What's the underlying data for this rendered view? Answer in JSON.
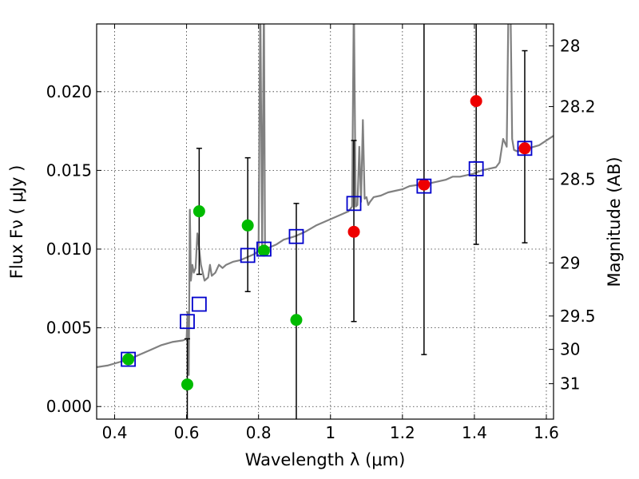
{
  "chart_data": {
    "type": "scatter",
    "xlabel": "Wavelength  λ (μm)",
    "ylabel": "Flux  Fν  ( μJy )",
    "ylabel_right": "Magnitude (AB)",
    "xlim": [
      0.35,
      1.62
    ],
    "ylim": [
      -0.0008,
      0.0243
    ],
    "grid": true,
    "x_ticks": [
      0.4,
      0.6,
      0.8,
      1.0,
      1.2,
      1.4,
      1.6
    ],
    "x_tick_labels": [
      "0.4",
      "0.6",
      "0.8",
      "1",
      "1.2",
      "1.4",
      "1.6"
    ],
    "y_ticks": [
      0.0,
      0.005,
      0.01,
      0.015,
      0.02
    ],
    "y_tick_labels": [
      "0.000",
      "0.005",
      "0.010",
      "0.015",
      "0.020"
    ],
    "right_ticks": [
      {
        "label": "28",
        "flux": 0.02291
      },
      {
        "label": "28.2",
        "flux": 0.01905
      },
      {
        "label": "28.5",
        "flux": 0.01445
      },
      {
        "label": "29",
        "flux": 0.00912
      },
      {
        "label": "29.5",
        "flux": 0.00575
      },
      {
        "label": "30",
        "flux": 0.00363
      },
      {
        "label": "31",
        "flux": 0.00145
      }
    ],
    "colors": {
      "template": "#808080",
      "model_box": "#0000cc",
      "green": "#00bb00",
      "red": "#ee0000",
      "errorbar": "#000000",
      "grid": "#333333"
    },
    "series": [
      {
        "kind": "template_spectrum",
        "x": [
          0.35,
          0.38,
          0.41,
          0.44,
          0.47,
          0.5,
          0.53,
          0.56,
          0.59,
          0.6,
          0.603,
          0.606,
          0.609,
          0.612,
          0.616,
          0.62,
          0.625,
          0.63,
          0.635,
          0.64,
          0.65,
          0.66,
          0.665,
          0.67,
          0.68,
          0.69,
          0.7,
          0.71,
          0.73,
          0.75,
          0.77,
          0.79,
          0.8,
          0.805,
          0.81,
          0.815,
          0.818,
          0.822,
          0.83,
          0.85,
          0.87,
          0.9,
          0.93,
          0.96,
          0.99,
          1.02,
          1.05,
          1.06,
          1.065,
          1.07,
          1.075,
          1.08,
          1.085,
          1.09,
          1.095,
          1.1,
          1.105,
          1.11,
          1.12,
          1.14,
          1.16,
          1.18,
          1.2,
          1.22,
          1.25,
          1.28,
          1.3,
          1.32,
          1.34,
          1.36,
          1.38,
          1.4,
          1.42,
          1.44,
          1.46,
          1.47,
          1.48,
          1.49,
          1.495,
          1.5,
          1.505,
          1.51,
          1.52,
          1.55,
          1.58,
          1.62
        ],
        "y": [
          0.0025,
          0.0026,
          0.0028,
          0.003,
          0.0033,
          0.0036,
          0.0039,
          0.0041,
          0.0042,
          0.0043,
          0.006,
          0.002,
          0.0125,
          0.008,
          0.009,
          0.0085,
          0.0088,
          0.011,
          0.01,
          0.009,
          0.008,
          0.0082,
          0.009,
          0.0083,
          0.0085,
          0.009,
          0.0088,
          0.009,
          0.0092,
          0.0093,
          0.0095,
          0.0097,
          0.0099,
          0.026,
          0.0099,
          0.026,
          0.0098,
          0.01,
          0.0101,
          0.0103,
          0.0106,
          0.0108,
          0.0111,
          0.0115,
          0.0118,
          0.0121,
          0.0124,
          0.0127,
          0.026,
          0.0127,
          0.0128,
          0.0165,
          0.013,
          0.0182,
          0.0132,
          0.0133,
          0.0128,
          0.013,
          0.0133,
          0.0134,
          0.0136,
          0.0137,
          0.0138,
          0.014,
          0.0141,
          0.0142,
          0.0143,
          0.0144,
          0.0146,
          0.0146,
          0.0147,
          0.0148,
          0.015,
          0.0151,
          0.0152,
          0.0155,
          0.017,
          0.0165,
          0.026,
          0.026,
          0.017,
          0.0163,
          0.0162,
          0.0164,
          0.0166,
          0.0172
        ]
      },
      {
        "kind": "model_photometry",
        "x": [
          0.438,
          0.602,
          0.635,
          0.77,
          0.815,
          0.905,
          1.065,
          1.26,
          1.405,
          1.54
        ],
        "y": [
          0.003,
          0.0054,
          0.0065,
          0.0096,
          0.01,
          0.0108,
          0.0129,
          0.014,
          0.0151,
          0.0164
        ]
      },
      {
        "kind": "observed_green",
        "x": [
          0.438,
          0.602,
          0.635,
          0.77,
          0.815,
          0.905
        ],
        "y": [
          0.003,
          0.0014,
          0.0124,
          0.0115,
          0.0099,
          0.0055
        ],
        "err_low": [
          0.0,
          0.005,
          0.004,
          0.0042,
          0.0,
          0.0065
        ],
        "err_high": [
          0.0,
          0.0029,
          0.004,
          0.0043,
          0.0,
          0.0074
        ]
      },
      {
        "kind": "observed_red",
        "x": [
          1.065,
          1.26,
          1.405,
          1.54
        ],
        "y": [
          0.0111,
          0.0141,
          0.0194,
          0.0164
        ],
        "err_low": [
          0.0057,
          0.0108,
          0.0091,
          0.006
        ],
        "err_high": [
          0.0058,
          0.011,
          0.006,
          0.0062
        ]
      }
    ]
  }
}
